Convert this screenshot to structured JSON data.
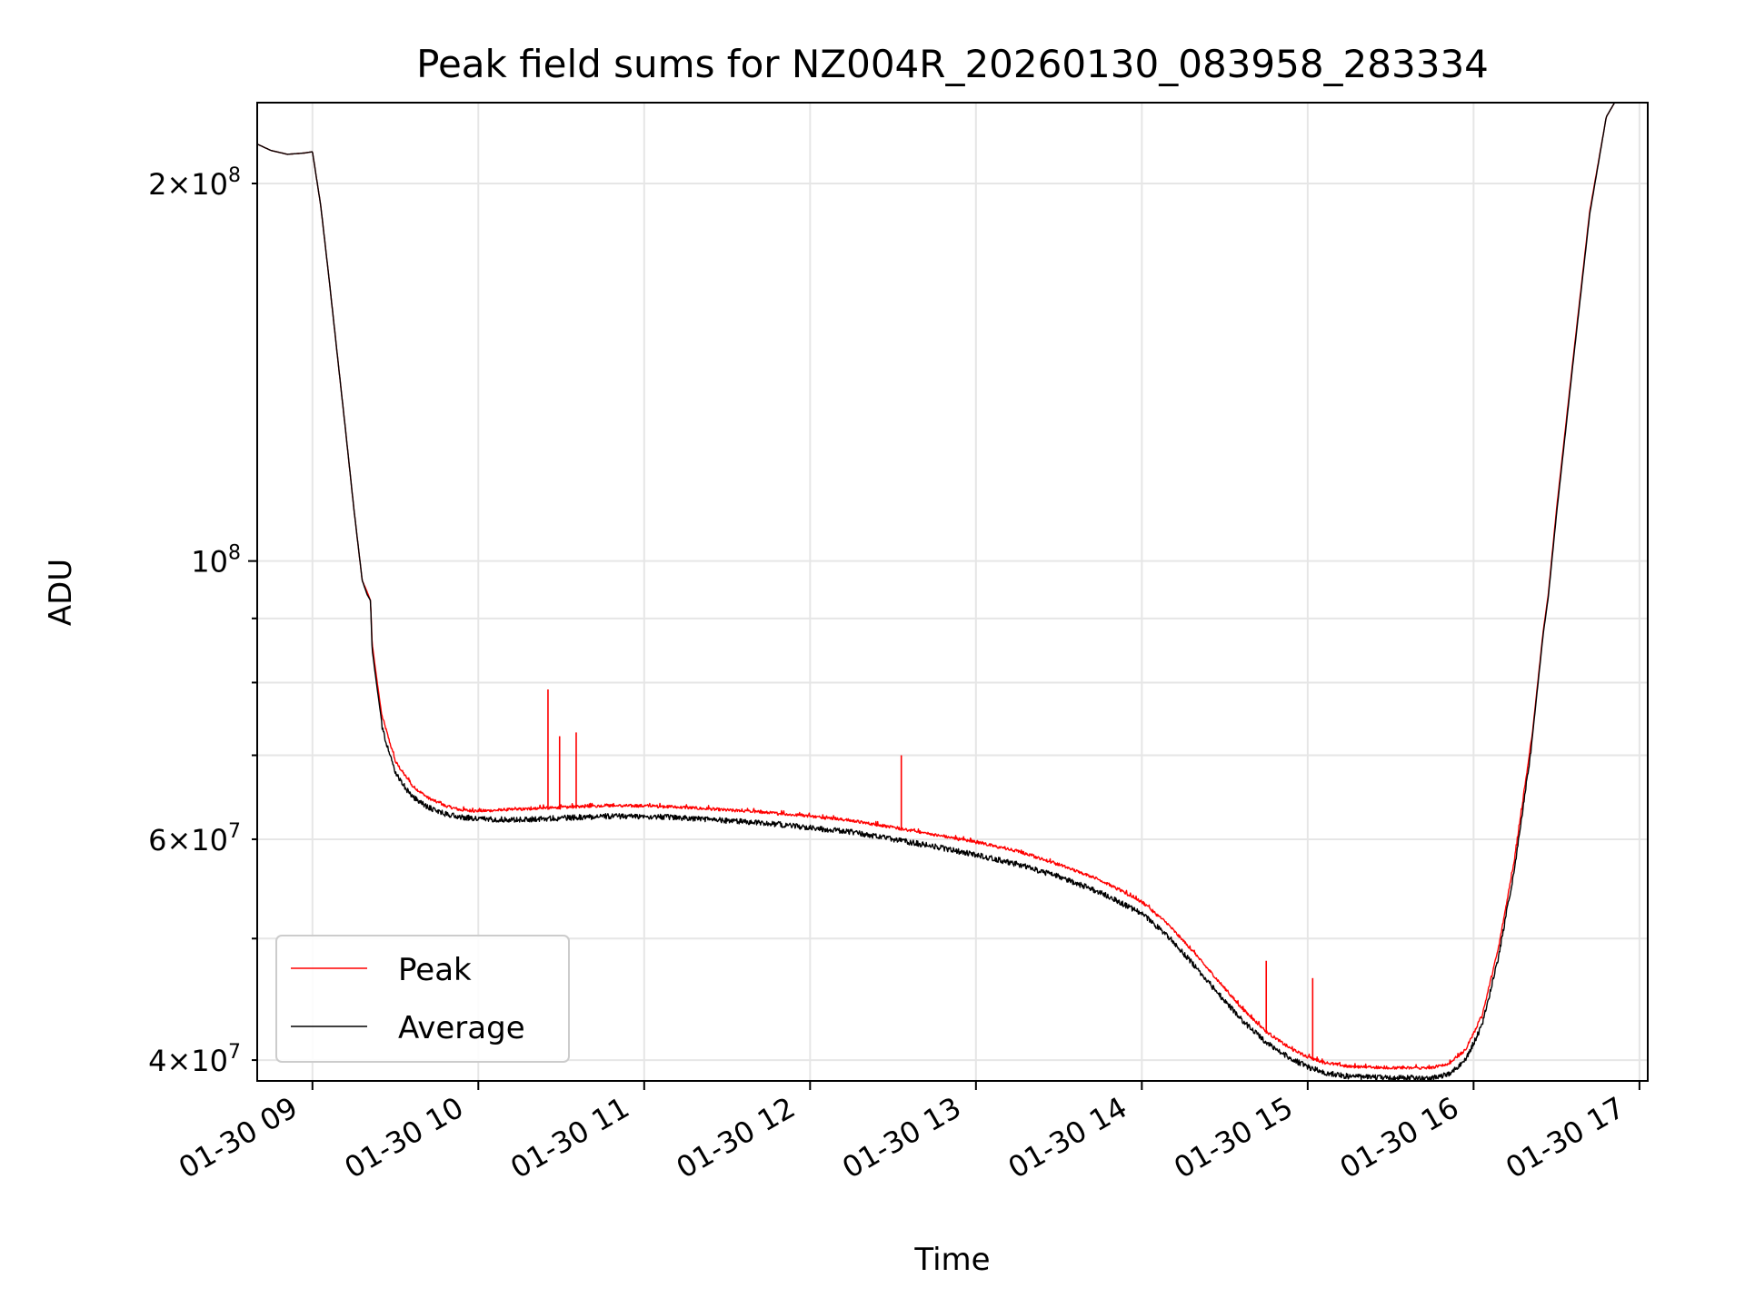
{
  "chart_data": {
    "type": "line",
    "title": "Peak field sums for NZ004R_20260130_083958_283334",
    "xlabel": "Time",
    "ylabel": "ADU",
    "yscale": "log",
    "ylim": [
      38500000,
      232000000
    ],
    "xlim_hours": [
      8.667,
      17.05
    ],
    "grid": true,
    "legend_position": "lower-left",
    "x_ticks": [
      {
        "hour": 9,
        "label": "01-30 09"
      },
      {
        "hour": 10,
        "label": "01-30 10"
      },
      {
        "hour": 11,
        "label": "01-30 11"
      },
      {
        "hour": 12,
        "label": "01-30 12"
      },
      {
        "hour": 13,
        "label": "01-30 13"
      },
      {
        "hour": 14,
        "label": "01-30 14"
      },
      {
        "hour": 15,
        "label": "01-30 15"
      },
      {
        "hour": 16,
        "label": "01-30 16"
      },
      {
        "hour": 17,
        "label": "01-30 17"
      }
    ],
    "y_major_ticks": [
      {
        "value": 100000000,
        "base": "10",
        "exp": "8"
      }
    ],
    "y_minor_ticks": [
      {
        "value": 40000000,
        "mult": "4",
        "exp": "7",
        "labeled": true
      },
      {
        "value": 50000000,
        "labeled": false
      },
      {
        "value": 60000000,
        "mult": "6",
        "exp": "7",
        "labeled": true
      },
      {
        "value": 70000000,
        "labeled": false
      },
      {
        "value": 80000000,
        "labeled": false
      },
      {
        "value": 90000000,
        "labeled": false
      },
      {
        "value": 200000000,
        "mult": "2",
        "exp": "8",
        "labeled": true
      }
    ],
    "x_hours": [
      8.667,
      8.75,
      8.85,
      8.95,
      9.0,
      9.05,
      9.1,
      9.15,
      9.2,
      9.25,
      9.3,
      9.33,
      9.35,
      9.36,
      9.38,
      9.42,
      9.5,
      9.6,
      9.7,
      9.8,
      9.9,
      10.0,
      10.25,
      10.5,
      10.75,
      11.0,
      11.25,
      11.5,
      11.75,
      12.0,
      12.25,
      12.5,
      12.75,
      13.0,
      13.25,
      13.5,
      13.75,
      14.0,
      14.15,
      14.3,
      14.45,
      14.6,
      14.75,
      14.9,
      15.0,
      15.1,
      15.25,
      15.5,
      15.75,
      15.85,
      15.95,
      16.05,
      16.15,
      16.25,
      16.35,
      16.42,
      16.45,
      16.5,
      16.6,
      16.7,
      16.8,
      16.85
    ],
    "series": [
      {
        "name": "Peak",
        "color": "#ff0000",
        "values": [
          215000000,
          212500000,
          211000000,
          211500000,
          212000000,
          192000000,
          168000000,
          146000000,
          127000000,
          110000000,
          96500000,
          94500000,
          93000000,
          86000000,
          82000000,
          75000000,
          69000000,
          66000000,
          64500000,
          63600000,
          63100000,
          63000000,
          63200000,
          63400000,
          63600000,
          63600000,
          63400000,
          63100000,
          62800000,
          62400000,
          61900000,
          61100000,
          60300000,
          59500000,
          58500000,
          57100000,
          55500000,
          53300000,
          51300000,
          48800000,
          46300000,
          43900000,
          42000000,
          40700000,
          40100000,
          39700000,
          39400000,
          39300000,
          39300000,
          39600000,
          40600000,
          43200000,
          49000000,
          58000000,
          72000000,
          88000000,
          94000000,
          110000000,
          145000000,
          190000000,
          226000000,
          232000000
        ],
        "spikes": [
          {
            "hour": 10.42,
            "value": 79000000
          },
          {
            "hour": 10.49,
            "value": 72500000
          },
          {
            "hour": 10.59,
            "value": 73000000
          },
          {
            "hour": 12.55,
            "value": 70000000
          },
          {
            "hour": 14.75,
            "value": 48000000
          },
          {
            "hour": 15.03,
            "value": 46500000
          }
        ]
      },
      {
        "name": "Average",
        "color": "#000000",
        "values": [
          215000000,
          212500000,
          211000000,
          211500000,
          212000000,
          192000000,
          168000000,
          146000000,
          127000000,
          110000000,
          96500000,
          94000000,
          93000000,
          85000000,
          81000000,
          74000000,
          68000000,
          65200000,
          63900000,
          63200000,
          62800000,
          62600000,
          62500000,
          62700000,
          62900000,
          62900000,
          62700000,
          62400000,
          62100000,
          61600000,
          61100000,
          60300000,
          59500000,
          58600000,
          57600000,
          56300000,
          54700000,
          52600000,
          50600000,
          48100000,
          45600000,
          43300000,
          41500000,
          40300000,
          39700000,
          39300000,
          39000000,
          38900000,
          38900000,
          39200000,
          40200000,
          42800000,
          48500000,
          57500000,
          71500000,
          87500000,
          93500000,
          109000000,
          144000000,
          189000000,
          226000000,
          232000000
        ]
      }
    ]
  }
}
